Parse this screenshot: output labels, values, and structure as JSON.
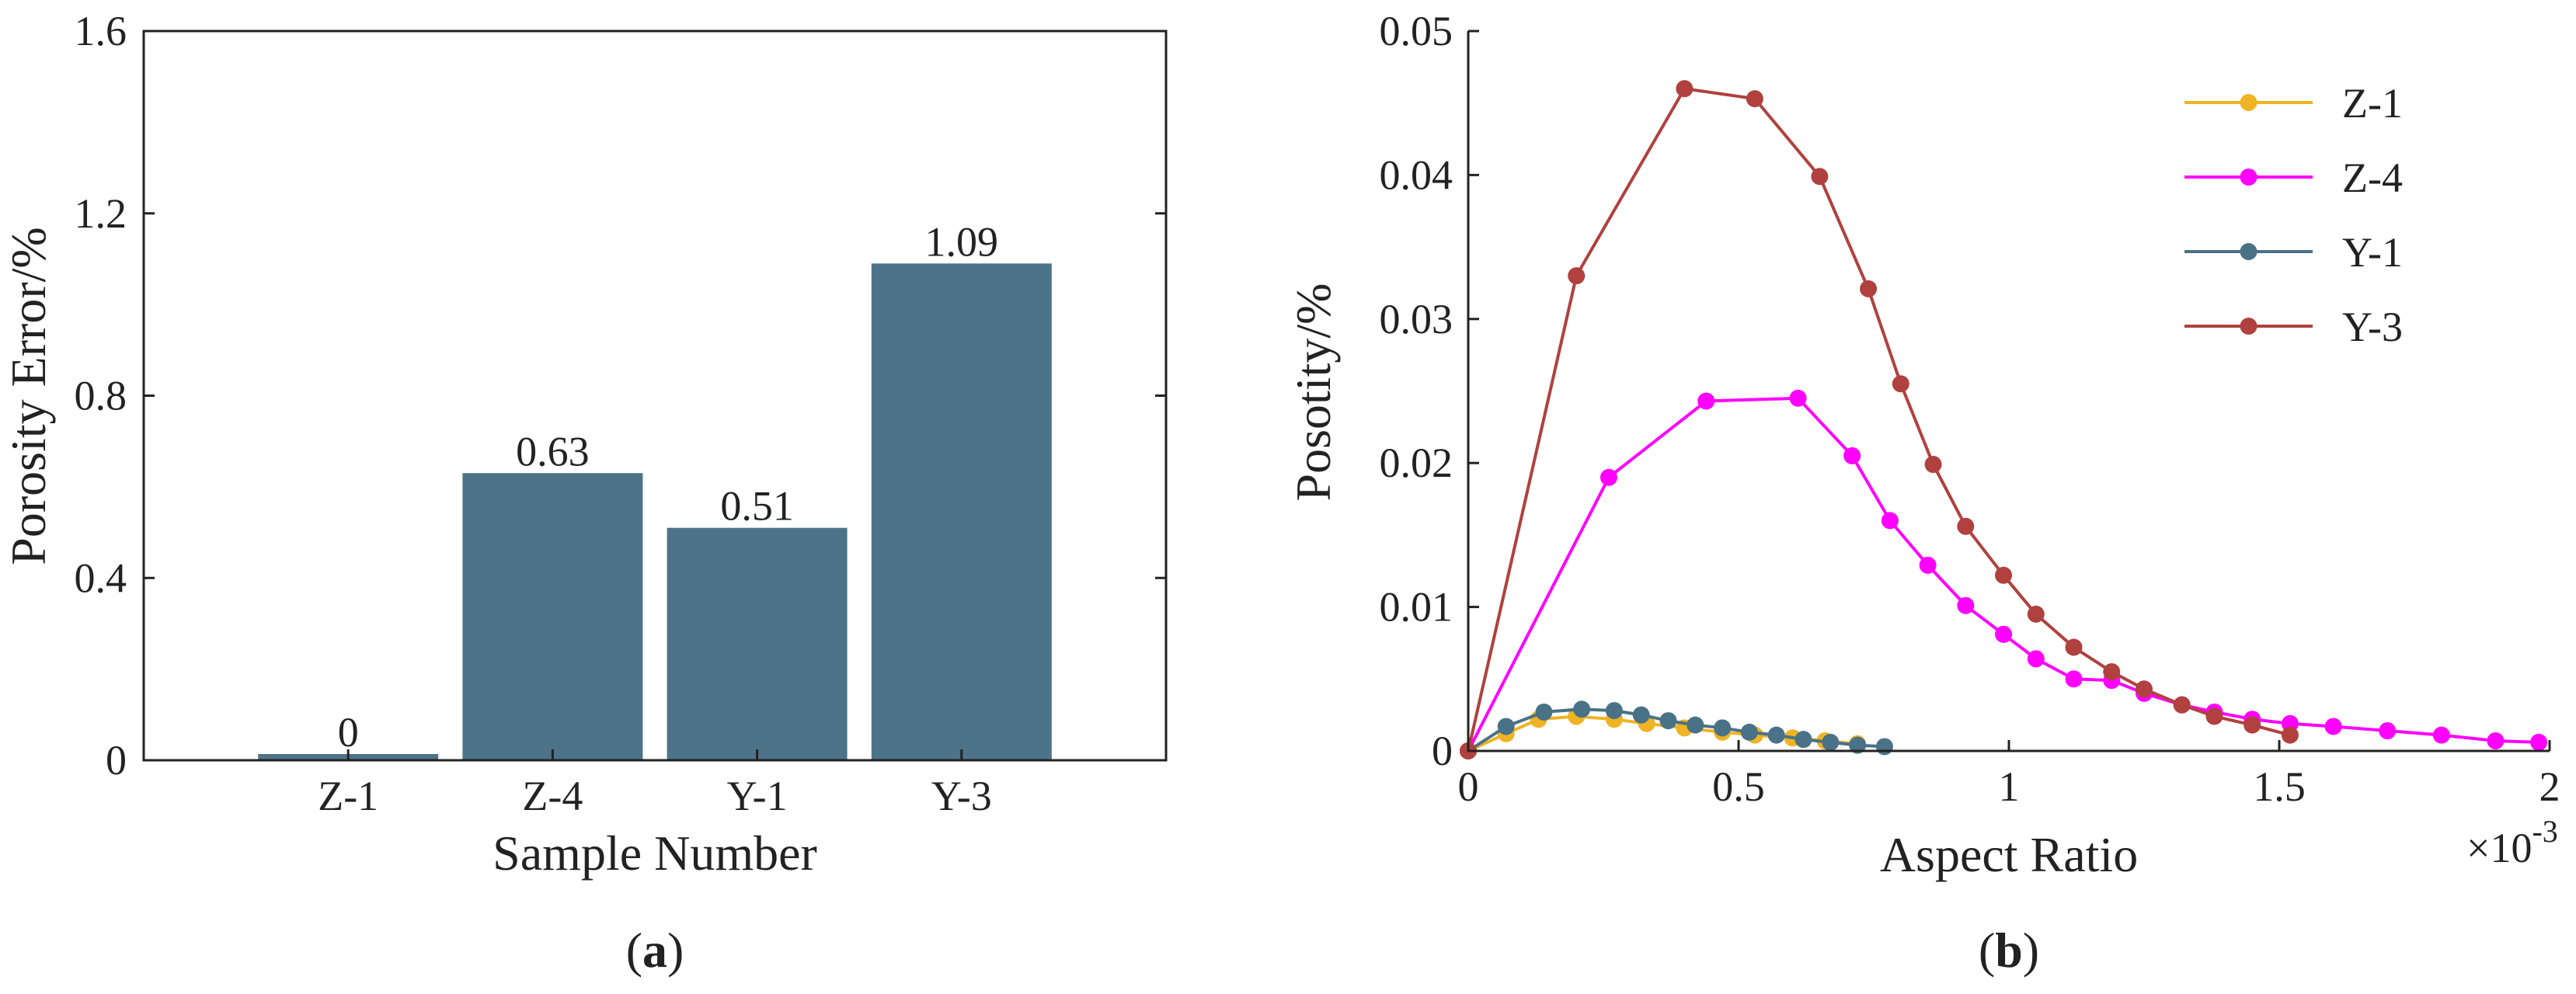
{
  "chart_data": [
    {
      "type": "bar",
      "panel_label": "(a)",
      "panel_letter": "a",
      "title": "",
      "xlabel": "Sample Number",
      "ylabel": "Porosity Error/%",
      "categories": [
        "Z-1",
        "Z-4",
        "Y-1",
        "Y-3"
      ],
      "values": [
        0,
        0.63,
        0.51,
        1.09
      ],
      "value_labels": [
        "0",
        "0.63",
        "0.51",
        "1.09"
      ],
      "ylim": [
        0,
        1.6
      ],
      "yticks": [
        0,
        0.4,
        0.8,
        1.2,
        1.6
      ],
      "ytick_labels": [
        "0",
        "0.4",
        "0.8",
        "1.2",
        "1.6"
      ],
      "bar_color": "#4d7389"
    },
    {
      "type": "line",
      "panel_label": "(b)",
      "panel_letter": "b",
      "title": "",
      "xlabel": "Aspect Ratio",
      "ylabel": "Posotity/%",
      "x_multiplier": "×10",
      "x_multiplier_exp": "-3",
      "xlim": [
        0,
        2
      ],
      "ylim": [
        0,
        0.05
      ],
      "xticks": [
        0,
        0.5,
        1,
        1.5,
        2
      ],
      "xtick_labels": [
        "0",
        "0.5",
        "1",
        "1.5",
        "2"
      ],
      "yticks": [
        0,
        0.01,
        0.02,
        0.03,
        0.04,
        0.05
      ],
      "ytick_labels": [
        "0",
        "0.01",
        "0.02",
        "0.03",
        "0.04",
        "0.05"
      ],
      "legend_position": "top-right",
      "series": [
        {
          "name": "Z-1",
          "color": "#f0b323",
          "x": [
            0,
            0.07,
            0.13,
            0.2,
            0.27,
            0.33,
            0.4,
            0.47,
            0.53,
            0.6,
            0.66,
            0.72
          ],
          "y": [
            0,
            0.0012,
            0.0022,
            0.0024,
            0.0022,
            0.0019,
            0.0016,
            0.0013,
            0.0011,
            0.0009,
            0.0007,
            0.0005
          ]
        },
        {
          "name": "Z-4",
          "color": "#ff00ff",
          "x": [
            0,
            0.26,
            0.44,
            0.61,
            0.71,
            0.78,
            0.85,
            0.92,
            0.99,
            1.05,
            1.12,
            1.19,
            1.25,
            1.32,
            1.38,
            1.45,
            1.52,
            1.6,
            1.7,
            1.8,
            1.9,
            1.98
          ],
          "y": [
            0,
            0.019,
            0.0243,
            0.0245,
            0.0205,
            0.016,
            0.0129,
            0.0101,
            0.0081,
            0.0064,
            0.005,
            0.0049,
            0.004,
            0.0032,
            0.0027,
            0.0022,
            0.0019,
            0.0017,
            0.0014,
            0.0011,
            0.0007,
            0.0006
          ]
        },
        {
          "name": "Y-1",
          "color": "#4a7287",
          "x": [
            0,
            0.07,
            0.14,
            0.21,
            0.27,
            0.32,
            0.37,
            0.42,
            0.47,
            0.52,
            0.57,
            0.62,
            0.67,
            0.72,
            0.77
          ],
          "y": [
            0,
            0.0017,
            0.0027,
            0.0029,
            0.0028,
            0.0025,
            0.0021,
            0.0018,
            0.0016,
            0.0013,
            0.0011,
            0.0008,
            0.0006,
            0.0004,
            0.0003
          ]
        },
        {
          "name": "Y-3",
          "color": "#b0413e",
          "x": [
            0,
            0.2,
            0.4,
            0.53,
            0.65,
            0.74,
            0.8,
            0.86,
            0.92,
            0.99,
            1.05,
            1.12,
            1.19,
            1.25,
            1.32,
            1.38,
            1.45,
            1.52
          ],
          "y": [
            0,
            0.033,
            0.046,
            0.0453,
            0.0399,
            0.0321,
            0.0255,
            0.0199,
            0.0156,
            0.0122,
            0.0095,
            0.0072,
            0.0055,
            0.0043,
            0.0032,
            0.0024,
            0.0018,
            0.0011
          ]
        }
      ]
    }
  ]
}
